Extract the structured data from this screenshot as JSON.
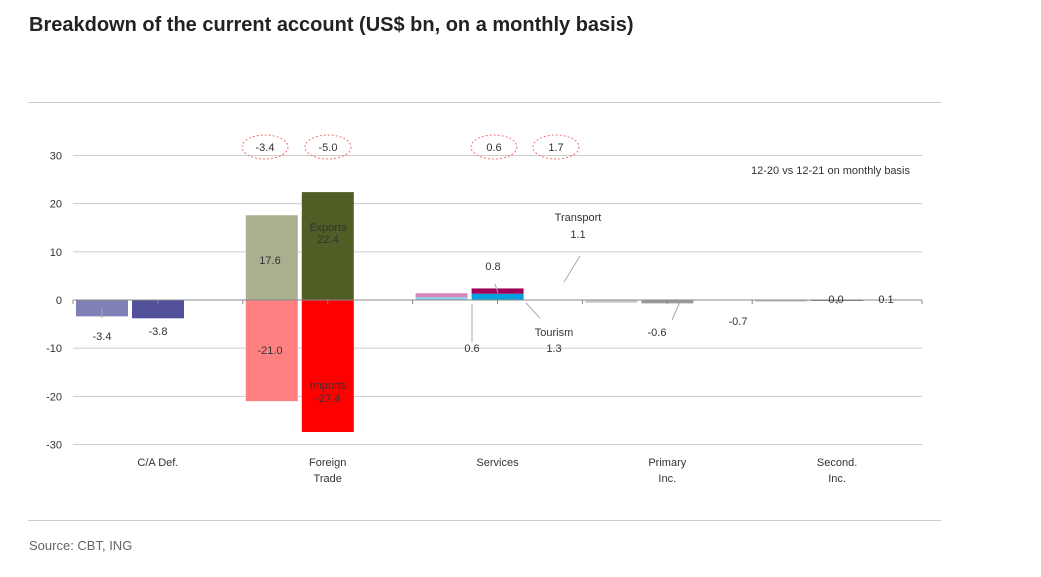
{
  "title": "Breakdown of the current account (US$ bn, on a monthly basis)",
  "source": "Source: CBT, ING",
  "chart_data": {
    "type": "bar",
    "title": "Breakdown of the current account (US$ bn, on a monthly basis)",
    "note": "12-20 vs 12-21 on monthly basis",
    "ylim": [
      -30,
      30
    ],
    "yticks": [
      "30",
      "20",
      "10",
      "0",
      "-10",
      "-20",
      "-30"
    ],
    "ytick_values": [
      30,
      20,
      10,
      0,
      -10,
      -20,
      -30
    ],
    "grid": true,
    "groups": [
      {
        "label": [
          "C/A Def."
        ],
        "bars": [
          {
            "segments": [
              {
                "name": "C/A Def. 12-20",
                "value": -3.4,
                "color": "#8080b8"
              }
            ]
          },
          {
            "segments": [
              {
                "name": "C/A Def. 12-21",
                "value": -3.8,
                "color": "#52509a"
              }
            ]
          }
        ]
      },
      {
        "label": [
          "Foreign",
          "Trade"
        ],
        "bars": [
          {
            "segments": [
              {
                "name": "Exports 12-20",
                "value": 17.6,
                "color": "#a8b090"
              },
              {
                "name": "Imports 12-20",
                "value": -21.0,
                "color": "#ff8080"
              }
            ]
          },
          {
            "segments": [
              {
                "name": "Exports 12-21",
                "value": 22.4,
                "color": "#4e5e25"
              },
              {
                "name": "Imports 12-21",
                "value": -27.4,
                "color": "#ff0000"
              }
            ]
          }
        ]
      },
      {
        "label": [
          "Services"
        ],
        "bars": [
          {
            "segments": [
              {
                "name": "Tourism 12-20",
                "value": 0.6,
                "color": "#8ed0f0"
              },
              {
                "name": "Transport 12-20",
                "value": 0.8,
                "color": "#d888b8"
              }
            ]
          },
          {
            "segments": [
              {
                "name": "Tourism 12-21",
                "value": 1.3,
                "color": "#00a0e0"
              },
              {
                "name": "Transport 12-21",
                "value": 1.1,
                "color": "#a0005a"
              }
            ]
          }
        ]
      },
      {
        "label": [
          "Primary",
          "Inc."
        ],
        "bars": [
          {
            "segments": [
              {
                "name": "Primary Inc. 12-20",
                "value": -0.6,
                "color": "#cccccc"
              }
            ]
          },
          {
            "segments": [
              {
                "name": "Primary Inc. 12-21",
                "value": -0.7,
                "color": "#999999"
              }
            ]
          }
        ]
      },
      {
        "label": [
          "Second.",
          "Inc."
        ],
        "bars": [
          {
            "segments": [
              {
                "name": "Second. Inc. 12-20",
                "value": 0.0,
                "color": "#bbbbbb"
              }
            ]
          },
          {
            "segments": [
              {
                "name": "Second. Inc. 12-21",
                "value": 0.1,
                "color": "#777777"
              }
            ]
          }
        ]
      }
    ],
    "data_labels": [
      "-3.4",
      "-3.8",
      "17.6",
      "-21.0",
      "Exports",
      "22.4",
      "Imports",
      "-27.4",
      "0.8",
      "0.6",
      "Transport",
      "1.1",
      "Tourism",
      "1.3",
      "-0.6",
      "-0.7",
      "0.0",
      "0.1"
    ],
    "balance_callouts": [
      "-3.4",
      "-5.0",
      "0.6",
      "1.7"
    ]
  }
}
